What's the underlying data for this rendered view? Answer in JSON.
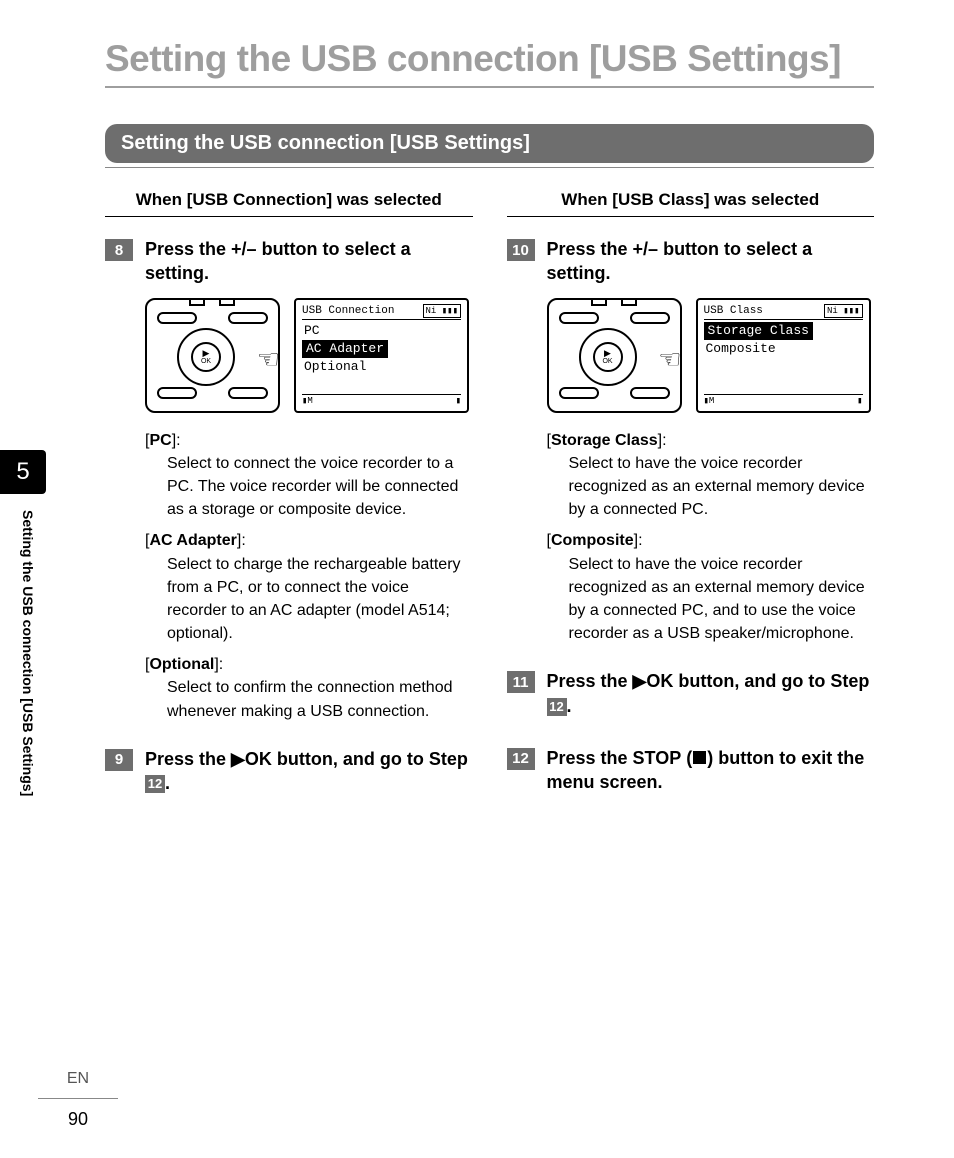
{
  "chapter_number": "5",
  "page_title": "Setting the USB connection [USB Settings]",
  "section_title": "Setting the USB connection [USB Settings]",
  "side_label": "Setting the USB connection [USB Settings]",
  "footer": {
    "lang": "EN",
    "page_number": "90"
  },
  "left": {
    "heading_pre": "When [",
    "heading_bold": "USB Connection",
    "heading_post": "] was selected",
    "step8": {
      "num": "8",
      "title": "Press the +/– button to select a setting."
    },
    "screen": {
      "title": "USB Connection",
      "batt": "Ni ▮▮▮",
      "options": [
        "PC",
        "AC Adapter",
        "Optional"
      ],
      "selected_index": 1,
      "foot_left": "▮M",
      "foot_right": "▮"
    },
    "defs": [
      {
        "term": "PC",
        "body": "Select to connect the voice recorder to a PC. The voice recorder will be connected as a storage or composite device."
      },
      {
        "term": "AC Adapter",
        "body": "Select to charge the rechargeable battery from a PC, or to connect the voice recorder to an AC adapter (model A514; optional)."
      },
      {
        "term": "Optional",
        "body": "Select to confirm the connection method whenever making a USB connection."
      }
    ],
    "step9": {
      "num": "9",
      "title_pre": "Press the ▶",
      "title_mid": "OK",
      "title_post": " button, and go to Step ",
      "ref": "12",
      "title_end": "."
    }
  },
  "right": {
    "heading_pre": "When [",
    "heading_bold": "USB Class",
    "heading_post": "] was selected",
    "step10": {
      "num": "10",
      "title": "Press the +/– button to select a setting."
    },
    "screen": {
      "title": "USB Class",
      "batt": "Ni ▮▮▮",
      "options": [
        "Storage Class",
        "Composite"
      ],
      "selected_index": 0,
      "foot_left": "▮M",
      "foot_right": "▮"
    },
    "defs": [
      {
        "term": "Storage Class",
        "body": "Select to have the voice recorder recognized as an external memory device by a connected PC."
      },
      {
        "term": "Composite",
        "body": "Select to have the voice recorder recognized as an external memory device by a connected PC, and to use the voice recorder as a USB speaker/microphone."
      }
    ],
    "step11": {
      "num": "11",
      "title_pre": "Press the ▶",
      "title_mid": "OK",
      "title_post": " button, and go to Step ",
      "ref": "12",
      "title_end": "."
    },
    "step12": {
      "num": "12",
      "title_pre": "Press the ",
      "title_mid": "STOP",
      "title_paren_open": " (",
      "title_paren_close": ") ",
      "title_post": "button to exit the menu screen."
    }
  }
}
